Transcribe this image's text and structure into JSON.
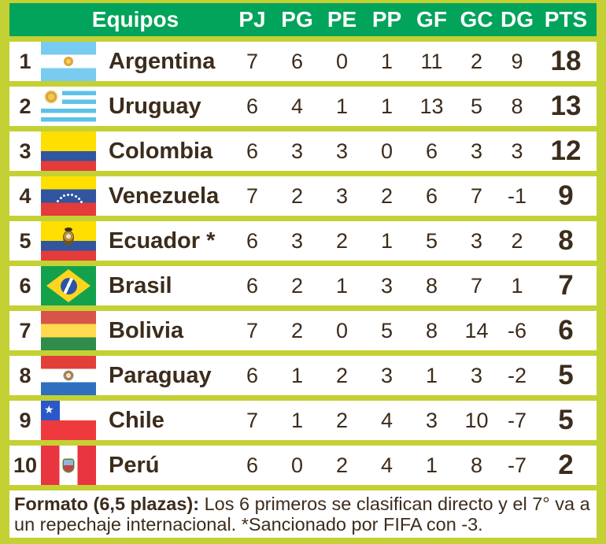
{
  "colors": {
    "border_lime": "#c4d134",
    "header_green": "#02a35b",
    "text_dark": "#3c2c1c",
    "row_white": "#ffffff"
  },
  "chart_data": {
    "type": "table",
    "title": "",
    "columns": [
      "",
      "Equipos",
      "PJ",
      "PG",
      "PE",
      "PP",
      "GF",
      "GC",
      "DG",
      "PTS"
    ],
    "rows": [
      {
        "rank": "1",
        "flag": "argentina",
        "team": "Argentina",
        "pj": "7",
        "pg": "6",
        "pe": "0",
        "pp": "1",
        "gf": "11",
        "gc": "2",
        "dg": "9",
        "pts": "18"
      },
      {
        "rank": "2",
        "flag": "uruguay",
        "team": "Uruguay",
        "pj": "6",
        "pg": "4",
        "pe": "1",
        "pp": "1",
        "gf": "13",
        "gc": "5",
        "dg": "8",
        "pts": "13"
      },
      {
        "rank": "3",
        "flag": "colombia",
        "team": "Colombia",
        "pj": "6",
        "pg": "3",
        "pe": "3",
        "pp": "0",
        "gf": "6",
        "gc": "3",
        "dg": "3",
        "pts": "12"
      },
      {
        "rank": "4",
        "flag": "venezuela",
        "team": "Venezuela",
        "pj": "7",
        "pg": "2",
        "pe": "3",
        "pp": "2",
        "gf": "6",
        "gc": "7",
        "dg": "-1",
        "pts": "9"
      },
      {
        "rank": "5",
        "flag": "ecuador",
        "team": "Ecuador *",
        "pj": "6",
        "pg": "3",
        "pe": "2",
        "pp": "1",
        "gf": "5",
        "gc": "3",
        "dg": "2",
        "pts": "8"
      },
      {
        "rank": "6",
        "flag": "brasil",
        "team": "Brasil",
        "pj": "6",
        "pg": "2",
        "pe": "1",
        "pp": "3",
        "gf": "8",
        "gc": "7",
        "dg": "1",
        "pts": "7"
      },
      {
        "rank": "7",
        "flag": "bolivia",
        "team": "Bolivia",
        "pj": "7",
        "pg": "2",
        "pe": "0",
        "pp": "5",
        "gf": "8",
        "gc": "14",
        "dg": "-6",
        "pts": "6"
      },
      {
        "rank": "8",
        "flag": "paraguay",
        "team": "Paraguay",
        "pj": "6",
        "pg": "1",
        "pe": "2",
        "pp": "3",
        "gf": "1",
        "gc": "3",
        "dg": "-2",
        "pts": "5"
      },
      {
        "rank": "9",
        "flag": "chile",
        "team": "Chile",
        "pj": "7",
        "pg": "1",
        "pe": "2",
        "pp": "4",
        "gf": "3",
        "gc": "10",
        "dg": "-7",
        "pts": "5"
      },
      {
        "rank": "10",
        "flag": "peru",
        "team": "Perú",
        "pj": "6",
        "pg": "0",
        "pe": "2",
        "pp": "4",
        "gf": "1",
        "gc": "8",
        "dg": "-7",
        "pts": "2"
      }
    ],
    "note": "Formato (6,5 plazas): Los 6 primeros se clasifican directo y el 7° va a un repechaje internacional. *Sancionado por FIFA con -3."
  },
  "footer": {
    "lead": "Formato (6,5 plazas):",
    "body": " Los 6 primeros se clasifican directo y el 7° va a un repechaje internacional. *Sancionado por FIFA con -3."
  }
}
